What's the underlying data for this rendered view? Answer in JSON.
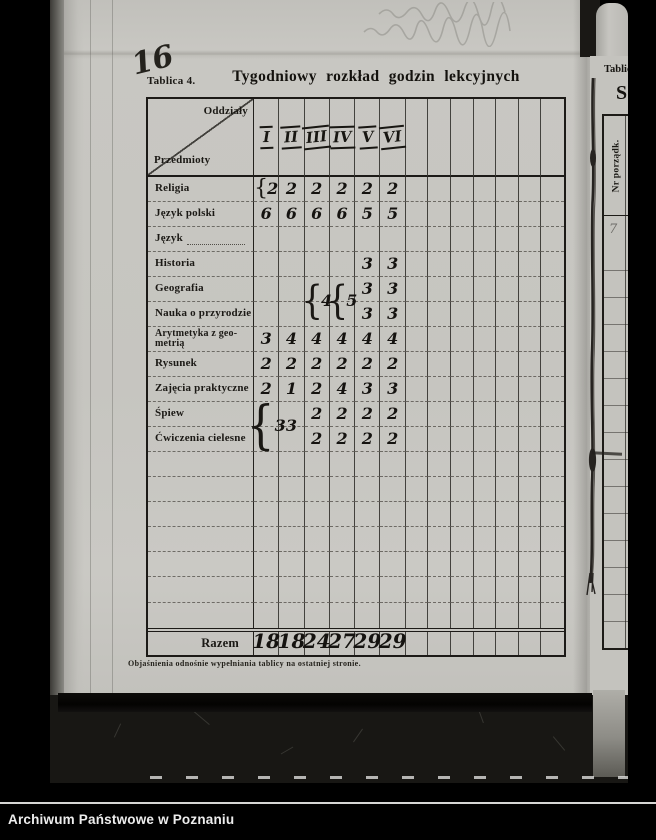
{
  "colors": {
    "photo_background": "#000000",
    "paper": "#c7c6c1",
    "printed_ink": "#1b1915",
    "handwriting_ink": "#151310",
    "caption_text": "#ededed"
  },
  "page": {
    "handwritten_page_number": "16",
    "table_label": "Tablica 4.",
    "title": "Tygodniowy rozkład godzin lekcyjnych",
    "footnote": "Objaśnienia odnośnie wypełniania tablicy na ostatniej stronie.",
    "table": {
      "corner_top_right": "Oddziały",
      "corner_bottom_left": "Przedmioty",
      "column_headers": [
        "I",
        "II",
        "III",
        "IV",
        "V",
        "VI"
      ],
      "empty_column_count": 7,
      "empty_row_count": 7,
      "rows": [
        {
          "label": "Religia",
          "values": [
            "{2",
            "2",
            "2",
            "2",
            "2",
            "2"
          ]
        },
        {
          "label": "Język polski",
          "values": [
            "6",
            "6",
            "6",
            "6",
            "5",
            "5"
          ]
        },
        {
          "label": "Język",
          "values": [
            "",
            "",
            "",
            "",
            "",
            ""
          ],
          "dotted_fill": true
        },
        {
          "label": "Historia",
          "values": [
            "",
            "",
            "",
            "",
            "3",
            "3"
          ]
        },
        {
          "label": "Geografia",
          "values": [
            "",
            "",
            "{4",
            "{5",
            "3",
            "3"
          ],
          "straddle": [
            2,
            3
          ]
        },
        {
          "label": "Nauka o przyrodzie",
          "values": [
            "",
            "",
            "",
            "",
            "3",
            "3"
          ]
        },
        {
          "label": "Arytmetyka z geo-\nmetrią",
          "values": [
            "3",
            "4",
            "4",
            "4",
            "4",
            "4"
          ],
          "small_label": true
        },
        {
          "label": "Rysunek",
          "values": [
            "2",
            "2",
            "2",
            "2",
            "2",
            "2"
          ]
        },
        {
          "label": "Zajęcia praktyczne",
          "values": [
            "2",
            "1",
            "2",
            "4",
            "3",
            "3"
          ]
        },
        {
          "label": "Śpiew",
          "values": [
            "{3",
            "3",
            "2",
            "2",
            "2",
            "2"
          ],
          "straddle": [
            0,
            1
          ]
        },
        {
          "label": "Ćwiczenia cielesne",
          "values": [
            "",
            "",
            "2",
            "2",
            "2",
            "2"
          ]
        }
      ],
      "total_row": {
        "label": "Razem",
        "values": [
          "18",
          "18",
          "24",
          "27",
          "29",
          "29"
        ]
      }
    }
  },
  "side_page": {
    "table_label": "Tablica",
    "title_fragment": "S",
    "column_header": "Nr porządk.",
    "handwritten_fragment": "7"
  },
  "footer": {
    "caption": "Archiwum Państwowe w Poznaniu"
  }
}
